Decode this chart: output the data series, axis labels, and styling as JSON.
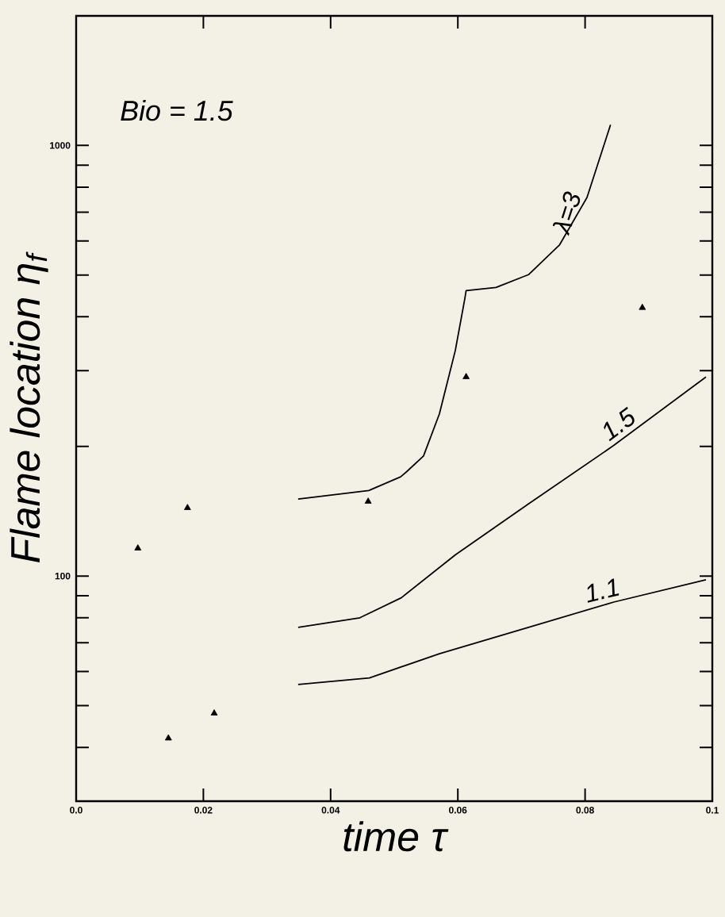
{
  "chart_data": {
    "type": "line",
    "xlabel": "time τ",
    "ylabel": "Flame location η$_{f}$",
    "annotations": [
      "Bio = 1.5"
    ],
    "log": "y",
    "xlim": [
      0,
      0.1
    ],
    "ylim": [
      30,
      2000
    ],
    "xticks": [
      {
        "value": 0,
        "label": "0.0"
      },
      0.02,
      0.04,
      0.06,
      0.08,
      0.1
    ],
    "yticks": [
      {
        "value": 40,
        "label": null
      },
      {
        "value": 50,
        "label": null
      },
      {
        "value": 60,
        "label": null
      },
      {
        "value": 70,
        "label": null
      },
      {
        "value": 80,
        "label": null
      },
      {
        "value": 90,
        "label": null
      },
      100,
      {
        "value": 200,
        "label": null
      },
      {
        "value": 300,
        "label": null
      },
      {
        "value": 400,
        "label": null
      },
      {
        "value": 500,
        "label": null
      },
      {
        "value": 600,
        "label": null
      },
      {
        "value": 700,
        "label": null
      },
      {
        "value": 800,
        "label": null
      },
      {
        "value": 900,
        "label": null
      },
      1000
    ],
    "tick_labels": "xy",
    "series": [
      {
        "name": "λ=3",
        "color": "#000000",
        "x": [
          0.0349,
          0.046,
          0.051,
          0.052,
          0.0546,
          0.0571,
          0.0596,
          0.0611,
          0.0613,
          0.066,
          0.0711,
          0.076,
          0.0803,
          0.084
        ],
        "values": [
          151,
          158,
          170,
          175,
          190,
          238,
          334,
          441,
          460,
          468,
          501,
          588,
          757,
          1117
        ]
      },
      {
        "name": "1.5",
        "color": "#000000",
        "x": [
          0.0349,
          0.0446,
          0.0511,
          0.0596,
          0.0711,
          0.0845,
          0.099
        ],
        "values": [
          76,
          80,
          89,
          112,
          147,
          201,
          290
        ]
      },
      {
        "name": "1.1",
        "color": "#000000",
        "x": [
          0.0349,
          0.0461,
          0.0571,
          0.0711,
          0.0845,
          0.099
        ],
        "values": [
          56,
          58,
          66,
          76,
          87,
          98
        ]
      },
      {
        "type": "scatter",
        "marker": "triangle",
        "color": "#000000",
        "x": [
          0.0097,
          0.0145,
          0.0175,
          0.0217,
          0.0459,
          0.0613,
          0.089
        ],
        "values": [
          116,
          42,
          144,
          48,
          149,
          290,
          420
        ]
      }
    ]
  }
}
